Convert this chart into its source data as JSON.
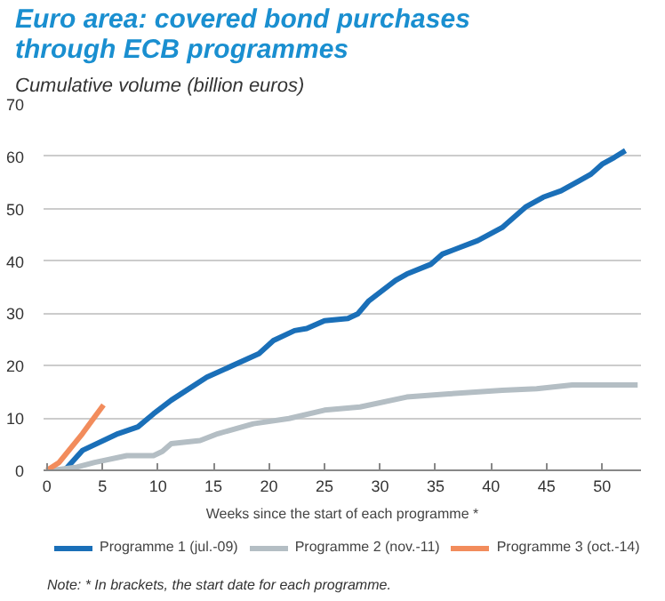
{
  "chart_data": {
    "type": "line",
    "title": "Euro area: covered bond purchases through ECB programmes",
    "subtitle": "Cumulative volume (billion euros)",
    "xlabel": "Weeks since the start of each programme *",
    "xlim": [
      -0.3,
      53.5
    ],
    "ylim": [
      0,
      70
    ],
    "xticks": [
      0,
      5,
      10,
      15,
      20,
      25,
      30,
      35,
      40,
      45,
      50
    ],
    "yticks": [
      0,
      10,
      20,
      30,
      40,
      50,
      60,
      70
    ],
    "grid": "y",
    "legend": "bottom",
    "line_style": "solid",
    "marker": "none",
    "series": [
      {
        "name": "Programme 1 (jul.-09)",
        "color": "#1a6fb8",
        "x": [
          1.6,
          3.2,
          6.4,
          8.2,
          9.6,
          11.2,
          14.4,
          19.1,
          20.4,
          22.3,
          23.4,
          25,
          27.1,
          28,
          29,
          31.4,
          32.4,
          34.6,
          35.6,
          37.2,
          38.8,
          41,
          43.1,
          44.7,
          46.3,
          47.9,
          49,
          50,
          51.1,
          52.1
        ],
        "values": [
          0,
          3.8,
          7,
          8.3,
          10.8,
          13.4,
          17.8,
          22.3,
          24.8,
          26.7,
          27.1,
          28.6,
          29,
          29.9,
          32.4,
          36.3,
          37.5,
          39.4,
          41.3,
          42.6,
          43.9,
          46.4,
          50.3,
          52.2,
          53.4,
          55.3,
          56.6,
          58.5,
          59.8,
          61.1
        ]
      },
      {
        "name": "Programme 2 (nov.-11)",
        "color": "#b4bec4",
        "x": [
          0.5,
          2.7,
          4.3,
          7.2,
          9.6,
          10.4,
          11.2,
          13.8,
          15.4,
          18.6,
          21.8,
          25,
          28.2,
          32.4,
          36.2,
          41,
          44.1,
          47.3,
          53.2
        ],
        "values": [
          0,
          0.6,
          1.5,
          2.8,
          2.8,
          3.6,
          5.1,
          5.7,
          7,
          8.9,
          9.9,
          11.5,
          12.1,
          14,
          14.6,
          15.3,
          15.6,
          16.3,
          16.3
        ]
      },
      {
        "name": "Programme 3 (oct.-14)",
        "color": "#f28c5c",
        "x": [
          0,
          1.1,
          3.2,
          4.3,
          5.1
        ],
        "values": [
          0,
          1.5,
          7,
          10.2,
          12.5
        ]
      }
    ],
    "annotations": [
      "Note: * In brackets, the start date for each programme."
    ]
  }
}
